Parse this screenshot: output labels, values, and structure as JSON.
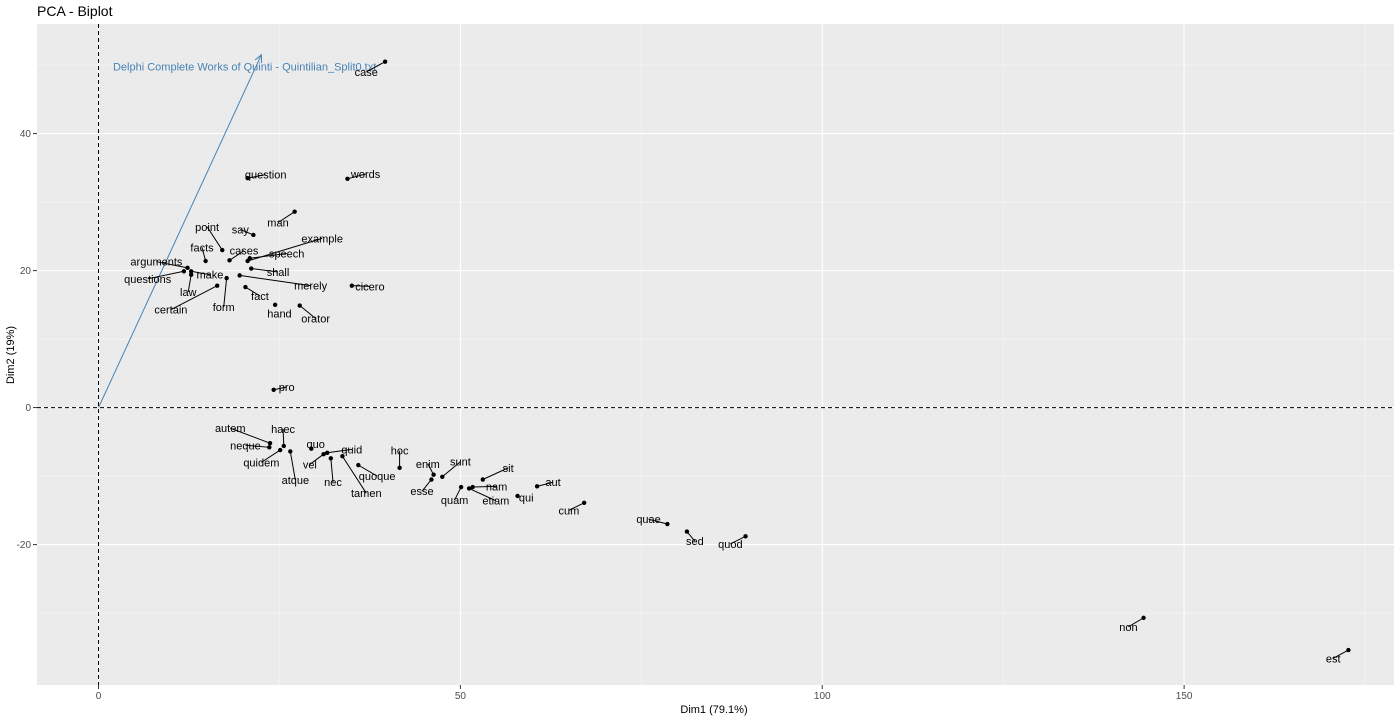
{
  "chart_data": {
    "type": "scatter",
    "title": "PCA - Biplot",
    "xlabel": "Dim1 (79.1%)",
    "ylabel": "Dim2 (19%)",
    "xlim": [
      -8.5,
      179
    ],
    "ylim": [
      -40.5,
      56
    ],
    "xticks": [
      0,
      50,
      100,
      150
    ],
    "xtick_labels": [
      "0",
      "50",
      "100",
      "150"
    ],
    "yticks": [
      -20,
      0,
      20,
      40
    ],
    "ytick_labels": [
      "-20",
      "0",
      "20",
      "40"
    ],
    "grid": true,
    "reference_lines": {
      "x": 0,
      "y": 0,
      "style": "dashed"
    },
    "variable_vector": {
      "name": "Delphi Complete Works of Quinti - Quintilian_Split0.txt",
      "x": 22.5,
      "y": 51.5,
      "color": "#4682b4",
      "label_x": 2,
      "label_y": 49.8
    },
    "points": [
      {
        "label": "case",
        "x": 39.6,
        "y": 50.5,
        "lx": 37.0,
        "ly": 49.0
      },
      {
        "label": "question",
        "x": 20.6,
        "y": 33.5,
        "lx": 23.1,
        "ly": 34.0
      },
      {
        "label": "words",
        "x": 34.4,
        "y": 33.4,
        "lx": 36.9,
        "ly": 34.1
      },
      {
        "label": "man",
        "x": 27.1,
        "y": 28.6,
        "lx": 24.8,
        "ly": 27.0
      },
      {
        "label": "say",
        "x": 21.4,
        "y": 25.2,
        "lx": 19.6,
        "ly": 26.0
      },
      {
        "label": "point",
        "x": 17.1,
        "y": 23.0,
        "lx": 15.0,
        "ly": 26.4
      },
      {
        "label": "example",
        "x": 20.6,
        "y": 21.4,
        "lx": 30.9,
        "ly": 24.7
      },
      {
        "label": "facts",
        "x": 14.8,
        "y": 21.4,
        "lx": 14.3,
        "ly": 23.4
      },
      {
        "label": "cases",
        "x": 18.1,
        "y": 21.5,
        "lx": 20.1,
        "ly": 22.9
      },
      {
        "label": "speech",
        "x": 20.9,
        "y": 21.8,
        "lx": 26.0,
        "ly": 22.5
      },
      {
        "label": "arguments",
        "x": 12.3,
        "y": 20.4,
        "lx": 8.0,
        "ly": 21.3
      },
      {
        "label": "shall",
        "x": 21.1,
        "y": 20.3,
        "lx": 24.8,
        "ly": 19.8
      },
      {
        "label": "make",
        "x": 12.8,
        "y": 19.9,
        "lx": 15.4,
        "ly": 19.4
      },
      {
        "label": "questions",
        "x": 11.8,
        "y": 19.9,
        "lx": 6.8,
        "ly": 18.8
      },
      {
        "label": "law",
        "x": 12.8,
        "y": 19.4,
        "lx": 12.4,
        "ly": 16.9
      },
      {
        "label": "merely",
        "x": 19.5,
        "y": 19.3,
        "lx": 29.3,
        "ly": 17.8
      },
      {
        "label": "cicero",
        "x": 35.0,
        "y": 17.8,
        "lx": 37.5,
        "ly": 17.7
      },
      {
        "label": "form",
        "x": 17.7,
        "y": 18.9,
        "lx": 17.3,
        "ly": 14.7
      },
      {
        "label": "certain",
        "x": 16.4,
        "y": 17.8,
        "lx": 10.0,
        "ly": 14.3
      },
      {
        "label": "fact",
        "x": 20.3,
        "y": 17.6,
        "lx": 22.3,
        "ly": 16.3
      },
      {
        "label": "hand",
        "x": 24.4,
        "y": 15.0,
        "lx": 25.0,
        "ly": 13.7
      },
      {
        "label": "orator",
        "x": 27.8,
        "y": 14.9,
        "lx": 30.0,
        "ly": 13.0
      },
      {
        "label": "pro",
        "x": 24.2,
        "y": 2.6,
        "lx": 26.0,
        "ly": 3.0
      },
      {
        "label": "autem",
        "x": 23.7,
        "y": -5.2,
        "lx": 18.2,
        "ly": -3.0
      },
      {
        "label": "haec",
        "x": 25.6,
        "y": -5.6,
        "lx": 25.5,
        "ly": -3.1
      },
      {
        "label": "neque",
        "x": 23.6,
        "y": -5.8,
        "lx": 20.3,
        "ly": -5.5
      },
      {
        "label": "quo",
        "x": 29.4,
        "y": -6.0,
        "lx": 30.0,
        "ly": -5.3
      },
      {
        "label": "quid",
        "x": 31.6,
        "y": -6.6,
        "lx": 35.0,
        "ly": -6.1
      },
      {
        "label": "quidem",
        "x": 25.1,
        "y": -6.2,
        "lx": 22.5,
        "ly": -8.0
      },
      {
        "label": "vel",
        "x": 31.1,
        "y": -6.8,
        "lx": 29.2,
        "ly": -8.3
      },
      {
        "label": "hoc",
        "x": 41.6,
        "y": -8.8,
        "lx": 41.6,
        "ly": -6.3
      },
      {
        "label": "atque",
        "x": 26.5,
        "y": -6.4,
        "lx": 27.2,
        "ly": -10.6
      },
      {
        "label": "quoque",
        "x": 35.9,
        "y": -8.4,
        "lx": 38.5,
        "ly": -10.0
      },
      {
        "label": "nec",
        "x": 32.1,
        "y": -7.4,
        "lx": 32.4,
        "ly": -10.9
      },
      {
        "label": "enim",
        "x": 46.3,
        "y": -9.8,
        "lx": 45.5,
        "ly": -8.2
      },
      {
        "label": "sunt",
        "x": 47.5,
        "y": -10.1,
        "lx": 50.0,
        "ly": -7.9
      },
      {
        "label": "tamen",
        "x": 33.7,
        "y": -7.1,
        "lx": 37.0,
        "ly": -12.5
      },
      {
        "label": "esse",
        "x": 46.0,
        "y": -10.5,
        "lx": 44.7,
        "ly": -12.2
      },
      {
        "label": "sit",
        "x": 53.1,
        "y": -10.5,
        "lx": 56.6,
        "ly": -8.8
      },
      {
        "label": "nam",
        "x": 51.7,
        "y": -11.6,
        "lx": 55.0,
        "ly": -11.5
      },
      {
        "label": "aut",
        "x": 60.6,
        "y": -11.5,
        "lx": 62.8,
        "ly": -10.9
      },
      {
        "label": "quam",
        "x": 50.1,
        "y": -11.6,
        "lx": 49.2,
        "ly": -13.5
      },
      {
        "label": "etiam",
        "x": 51.2,
        "y": -11.8,
        "lx": 54.9,
        "ly": -13.6
      },
      {
        "label": "qui",
        "x": 57.9,
        "y": -12.9,
        "lx": 59.1,
        "ly": -13.1
      },
      {
        "label": "cum",
        "x": 67.1,
        "y": -13.9,
        "lx": 65.0,
        "ly": -15.0
      },
      {
        "label": "quae",
        "x": 78.6,
        "y": -17.0,
        "lx": 76.0,
        "ly": -16.3
      },
      {
        "label": "sed",
        "x": 81.3,
        "y": -18.1,
        "lx": 82.4,
        "ly": -19.5
      },
      {
        "label": "quod",
        "x": 89.4,
        "y": -18.8,
        "lx": 87.3,
        "ly": -19.9
      },
      {
        "label": "non",
        "x": 144.4,
        "y": -30.7,
        "lx": 142.3,
        "ly": -32.0
      },
      {
        "label": "est",
        "x": 172.7,
        "y": -35.4,
        "lx": 170.6,
        "ly": -36.6
      }
    ]
  }
}
